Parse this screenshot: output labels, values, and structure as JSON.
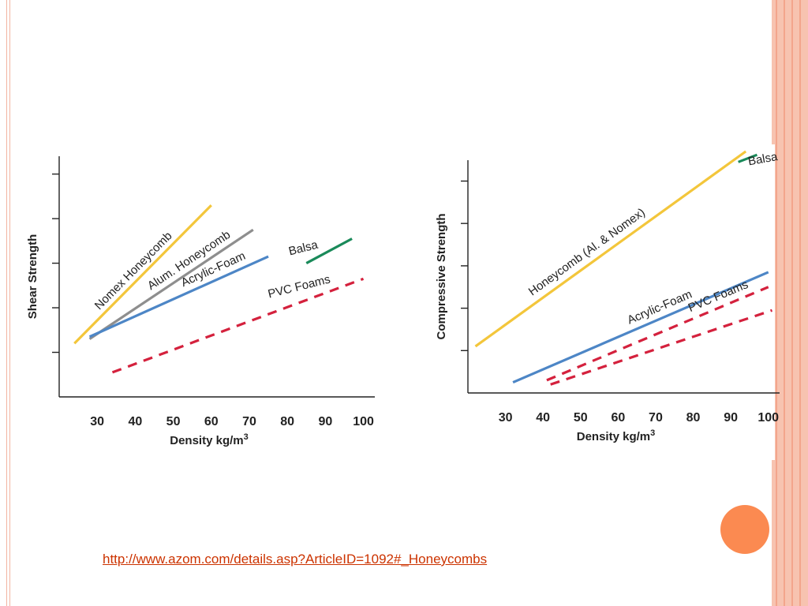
{
  "slide": {
    "link_text": "http://www.azom.com/details.asp?ArticleID=1092#_Honeycombs",
    "link_color": "#cc3300",
    "accent_color": "#fb8a51",
    "frame_color": "#f7c3b0",
    "frame_line_color": "#f3a58c"
  },
  "chart_data": [
    {
      "type": "line",
      "title": "",
      "xlabel": "Density kg/m",
      "xlabel_superscript": "3",
      "ylabel": "Shear Strength",
      "xlim": [
        20,
        103
      ],
      "ylim": [
        0,
        5.4
      ],
      "x_ticks": [
        30,
        40,
        50,
        60,
        70,
        80,
        90,
        100
      ],
      "y_ticks": [
        1,
        2,
        3,
        4,
        5
      ],
      "y_tick_labels_shown": false,
      "legend": "inline labels",
      "series": [
        {
          "name": "Nomex Honeycomb",
          "color": "#f3c63b",
          "dashed": false,
          "x": [
            24,
            60
          ],
          "y": [
            1.2,
            4.3
          ]
        },
        {
          "name": "Alum. Honeycomb",
          "color": "#8e8e8e",
          "dashed": false,
          "x": [
            28,
            71
          ],
          "y": [
            1.3,
            3.75
          ]
        },
        {
          "name": "Acrylic-Foam",
          "color": "#4d86c6",
          "dashed": false,
          "x": [
            28,
            75
          ],
          "y": [
            1.35,
            3.15
          ]
        },
        {
          "name": "Balsa",
          "color": "#1a8a5a",
          "dashed": false,
          "x": [
            85,
            97
          ],
          "y": [
            3.0,
            3.55
          ]
        },
        {
          "name": "PVC Foams",
          "color": "#d4213d",
          "dashed": true,
          "x": [
            34,
            100
          ],
          "y": [
            0.55,
            2.65
          ]
        }
      ]
    },
    {
      "type": "line",
      "title": "",
      "xlabel": "Density kg/m",
      "xlabel_superscript": "3",
      "ylabel": "Compressive Strength",
      "xlim": [
        20,
        103
      ],
      "ylim": [
        0,
        5.4
      ],
      "x_ticks": [
        30,
        40,
        50,
        60,
        70,
        80,
        90,
        100
      ],
      "y_ticks": [
        1,
        2,
        3,
        4,
        5
      ],
      "y_tick_labels_shown": false,
      "legend": "inline labels",
      "series": [
        {
          "name": "Honeycomb (Al. & Nomex)",
          "color": "#f3c63b",
          "dashed": false,
          "x": [
            22,
            94
          ],
          "y": [
            1.1,
            5.7
          ]
        },
        {
          "name": "Balsa",
          "color": "#1a8a5a",
          "dashed": false,
          "x": [
            92,
            97
          ],
          "y": [
            5.45,
            5.62
          ]
        },
        {
          "name": "Acrylic-Foam",
          "color": "#4d86c6",
          "dashed": false,
          "x": [
            32,
            100
          ],
          "y": [
            0.25,
            2.85
          ]
        },
        {
          "name": "PVC Foams",
          "color": "#d4213d",
          "dashed": true,
          "x": [
            41,
            100
          ],
          "y": [
            0.3,
            2.5
          ]
        },
        {
          "name": "PVC Foams",
          "color": "#d4213d",
          "dashed": true,
          "x": [
            42,
            101
          ],
          "y": [
            0.2,
            1.95
          ]
        }
      ]
    }
  ]
}
